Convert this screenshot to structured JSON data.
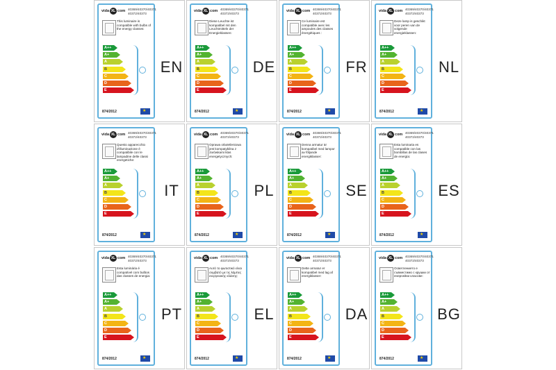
{
  "brand": {
    "logo_left": "vida",
    "logo_mark": "XL",
    "logo_right": "com"
  },
  "codes": [
    "40369/40370/40371",
    "40372/40373"
  ],
  "regulation": "874/2012",
  "classes": [
    {
      "label": "A++",
      "color": "#1a9a3a"
    },
    {
      "label": "A+",
      "color": "#53b331"
    },
    {
      "label": "A",
      "color": "#b9d12e"
    },
    {
      "label": "B",
      "color": "#f3e51a"
    },
    {
      "label": "C",
      "color": "#f3b415"
    },
    {
      "label": "D",
      "color": "#e8641b"
    },
    {
      "label": "E",
      "color": "#d7141e"
    }
  ],
  "accent_color": "#5fb0dc",
  "labels": [
    {
      "code": "EN",
      "text": "This luminaire is compatible with bulbs of the energy classes:"
    },
    {
      "code": "DE",
      "text": "Diese Leuchte ist kompatibel mit den Leuchtmitteln der Energieklassen:"
    },
    {
      "code": "FR",
      "text": "Ce luminaire est compatible avec les ampoules des classes énergétiques :"
    },
    {
      "code": "NL",
      "text": "Deze lamp is geschikt voor peren van de volgende energieklassen:"
    },
    {
      "code": "IT",
      "text": "Questo apparecchio d'illuminazione è compatibile con le lampadine delle classi energetiche:"
    },
    {
      "code": "PL",
      "text": "Oprawa oświetleniowa jest kompatybilna z żarówkami klas energetycznych:"
    },
    {
      "code": "SE",
      "text": "Denna armatur är kompatibel med lampor av följande energiklasser:"
    },
    {
      "code": "ES",
      "text": "Esta luminaria es compatible con las bombillas de las clases de energía:"
    },
    {
      "code": "PT",
      "text": "Esta luminária é compatível com bulbos das classes de energia:"
    },
    {
      "code": "EL",
      "text": "Αυτό το φωτιστικό είναι συμβατό με τις λάμπες ενεργειακής κλάσης:"
    },
    {
      "code": "DA",
      "text": "Dette armatur er kompatibel med lag af energiklasser:"
    },
    {
      "code": "BG",
      "text": "Осветлението е съвместимо с крушки от енергийни класове:"
    }
  ]
}
